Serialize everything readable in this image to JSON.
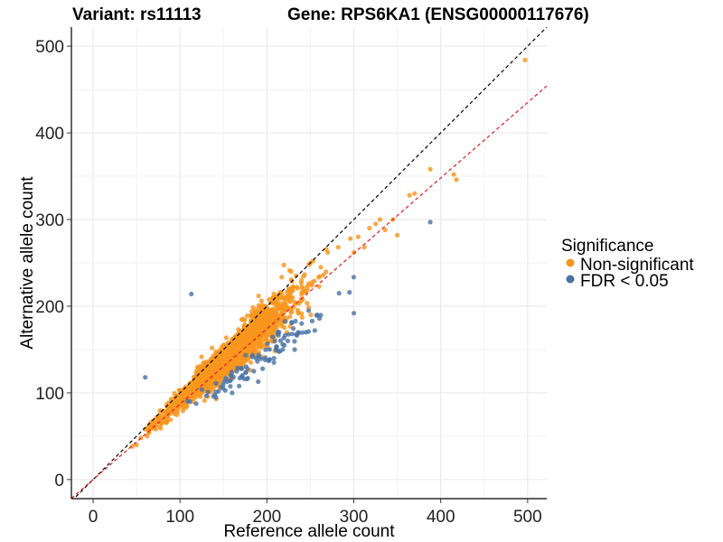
{
  "chart_data": {
    "type": "scatter",
    "title_left": "Variant: rs11113",
    "title_right": "Gene: RPS6KA1 (ENSG00000117676)",
    "xlabel": "Reference allele count",
    "ylabel": "Alternative allele count",
    "xlim": [
      -25,
      522
    ],
    "ylim": [
      -22,
      522
    ],
    "xticks": [
      0,
      100,
      200,
      300,
      400,
      500
    ],
    "yticks": [
      0,
      100,
      200,
      300,
      400,
      500
    ],
    "grid": true,
    "legend": {
      "title": "Significance",
      "placement": "right",
      "items": [
        {
          "label": "Non-significant",
          "color": "#F8961E"
        },
        {
          "label": "FDR < 0.05",
          "color": "#4A74A8"
        }
      ]
    },
    "reference_lines": [
      {
        "name": "identity",
        "slope": 1.0,
        "intercept": 0,
        "color": "#000000",
        "style": "dashed"
      },
      {
        "name": "fit",
        "slope": 0.87,
        "intercept": 0,
        "color": "#E41A1C",
        "style": "dashed"
      }
    ],
    "series": [
      {
        "name": "Non-significant",
        "color": "#F8961E",
        "generated_cloud": {
          "count": 1900,
          "center_x": 160,
          "center_y": 145,
          "spread_x": 36,
          "ratio_mean": 0.9,
          "ratio_sd": 0.065
        },
        "points": [
          [
            45,
            38
          ],
          [
            50,
            40
          ],
          [
            55,
            48
          ],
          [
            60,
            58
          ],
          [
            62,
            50
          ],
          [
            68,
            62
          ],
          [
            72,
            58
          ],
          [
            250,
            250
          ],
          [
            262,
            245
          ],
          [
            270,
            262
          ],
          [
            282,
            268
          ],
          [
            296,
            278
          ],
          [
            300,
            262
          ],
          [
            305,
            280
          ],
          [
            312,
            268
          ],
          [
            318,
            290
          ],
          [
            325,
            295
          ],
          [
            330,
            300
          ],
          [
            336,
            288
          ],
          [
            345,
            300
          ],
          [
            350,
            282
          ],
          [
            364,
            328
          ],
          [
            370,
            330
          ],
          [
            388,
            358
          ],
          [
            415,
            352
          ],
          [
            418,
            346
          ],
          [
            497,
            484
          ]
        ]
      },
      {
        "name": "FDR < 0.05",
        "color": "#4A74A8",
        "generated_cloud": {
          "count": 85,
          "center_x": 190,
          "center_y": 140,
          "spread_x": 40,
          "ratio_mean": 0.74,
          "ratio_sd": 0.035
        },
        "points": [
          [
            60,
            118
          ],
          [
            113,
            214
          ],
          [
            388,
            297
          ],
          [
            295,
            216
          ],
          [
            300,
            192
          ],
          [
            283,
            215
          ],
          [
            248,
            195
          ],
          [
            252,
            183
          ],
          [
            258,
            190
          ],
          [
            236,
            170
          ],
          [
            240,
            180
          ],
          [
            224,
            160
          ],
          [
            215,
            148
          ],
          [
            208,
            140
          ],
          [
            195,
            128
          ],
          [
            185,
            125
          ],
          [
            178,
            117
          ],
          [
            168,
            108
          ],
          [
            160,
            100
          ],
          [
            152,
            103
          ],
          [
            140,
            98
          ],
          [
            132,
            101
          ],
          [
            125,
            104
          ],
          [
            190,
            113
          ],
          [
            208,
            135
          ],
          [
            220,
            155
          ],
          [
            232,
            150
          ],
          [
            245,
            170
          ],
          [
            255,
            172
          ]
        ]
      }
    ]
  }
}
